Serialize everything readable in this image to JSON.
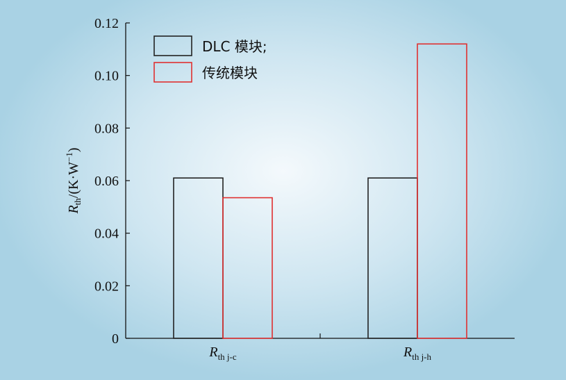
{
  "chart_data": {
    "type": "bar",
    "categories": [
      "R_th j-c",
      "R_th j-h"
    ],
    "category_labels": [
      {
        "main": "R",
        "sub": "th j-c"
      },
      {
        "main": "R",
        "sub": "th j-h"
      }
    ],
    "series": [
      {
        "name": "DLC 模块;",
        "values": [
          0.061,
          0.061
        ],
        "color": "#222222"
      },
      {
        "name": "传统模块",
        "values": [
          0.0535,
          0.112
        ],
        "color": "#e03030"
      }
    ],
    "ylim": [
      0,
      0.12
    ],
    "yticks": [
      "0",
      "0.02",
      "0.04",
      "0.06",
      "0.08",
      "0.10",
      "0.12"
    ],
    "ylabel": {
      "main": "R",
      "sub": "th",
      "rest": "/(K·W",
      "sup": "−1",
      "end": ")"
    },
    "legend_position": "top-left",
    "grid": false
  }
}
